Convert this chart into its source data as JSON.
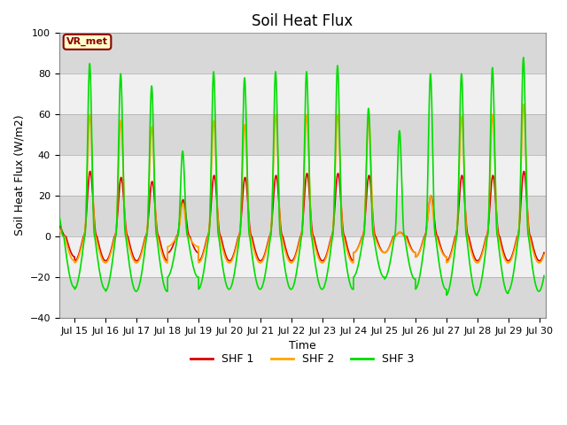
{
  "title": "Soil Heat Flux",
  "ylabel": "Soil Heat Flux (W/m2)",
  "xlabel": "Time",
  "ylim": [
    -40,
    100
  ],
  "xlim_days": [
    14.5,
    30.2
  ],
  "xtick_days": [
    15,
    16,
    17,
    18,
    19,
    20,
    21,
    22,
    23,
    24,
    25,
    26,
    27,
    28,
    29,
    30
  ],
  "xtick_labels": [
    "Jul 15",
    "Jul 16",
    "Jul 17",
    "Jul 18",
    "Jul 19",
    "Jul 20",
    "Jul 21",
    "Jul 22",
    "Jul 23",
    "Jul 24",
    "Jul 25",
    "Jul 26",
    "Jul 27",
    "Jul 28",
    "Jul 29",
    "Jul 30"
  ],
  "series_colors": [
    "#dd0000",
    "#ffa500",
    "#00dd00"
  ],
  "series_labels": [
    "SHF 1",
    "SHF 2",
    "SHF 3"
  ],
  "vr_met_label": "VR_met",
  "vr_met_color": "#8b0000",
  "vr_met_bg": "#ffffcc",
  "background_color": "#ffffff",
  "plot_bg_color": "#d8d8d8",
  "white_band_color": "#f0f0f0",
  "title_fontsize": 12,
  "label_fontsize": 9,
  "tick_fontsize": 8,
  "legend_fontsize": 9,
  "linewidth": 1.2
}
